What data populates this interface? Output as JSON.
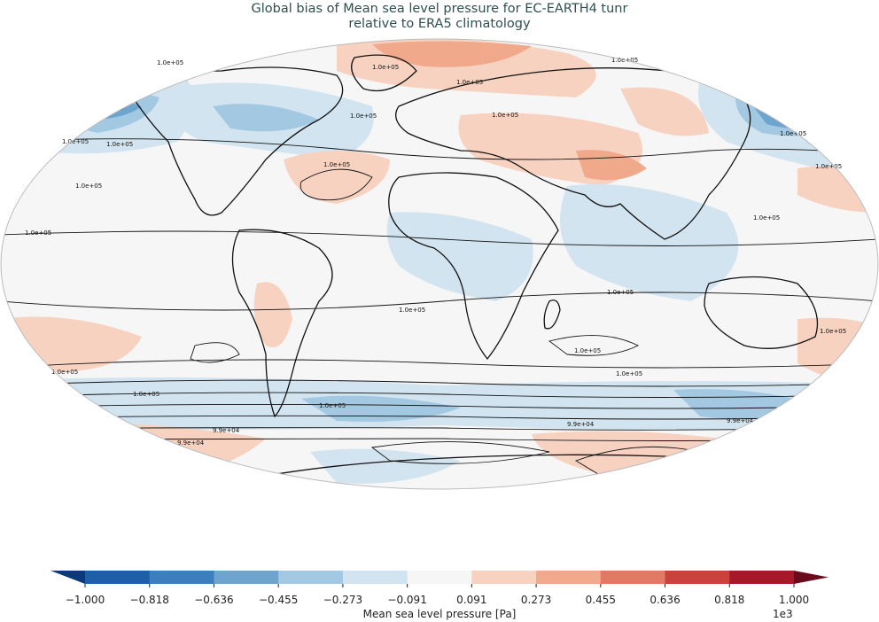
{
  "title_line1": "Global bias of Mean sea level pressure for EC-EARTH4 tunr",
  "title_line2": "relative to ERA5 climatology",
  "colorbar": {
    "label": "Mean sea level pressure [Pa]",
    "exponent": "1e3",
    "ticks": [
      "−1.000",
      "−0.818",
      "−0.636",
      "−0.455",
      "−0.273",
      "−0.091",
      "0.091",
      "0.273",
      "0.455",
      "0.636",
      "0.818",
      "1.000"
    ],
    "colors": [
      "#1f5fa8",
      "#3b7fbd",
      "#6ea5cf",
      "#a3c8e2",
      "#d2e4f0",
      "#f6f6f6",
      "#f8d2c0",
      "#f1a98c",
      "#e07a62",
      "#c9433c",
      "#a5192a"
    ],
    "under_color": "#0c3a78",
    "over_color": "#6b0a1c"
  },
  "contour_labels": [
    "1.0e+05",
    "1.0e+05",
    "1.0e+05",
    "1.0e+05",
    "1.0e+05",
    "1.0e+05",
    "1.0e+05",
    "1.0e+05",
    "1.0e+05",
    "1.0e+05",
    "1.0e+05",
    "1.0e+05",
    "1.0e+05",
    "1.0e+05",
    "1.0e+05",
    "1.0e+05",
    "1.0e+05",
    "1.0e+05",
    "1.0e+05",
    "1.0e+05",
    "1.0e+05",
    "1.0e+05",
    "9.9e+04",
    "9.9e+04",
    "9.9e+04",
    "9.9e+04"
  ]
}
